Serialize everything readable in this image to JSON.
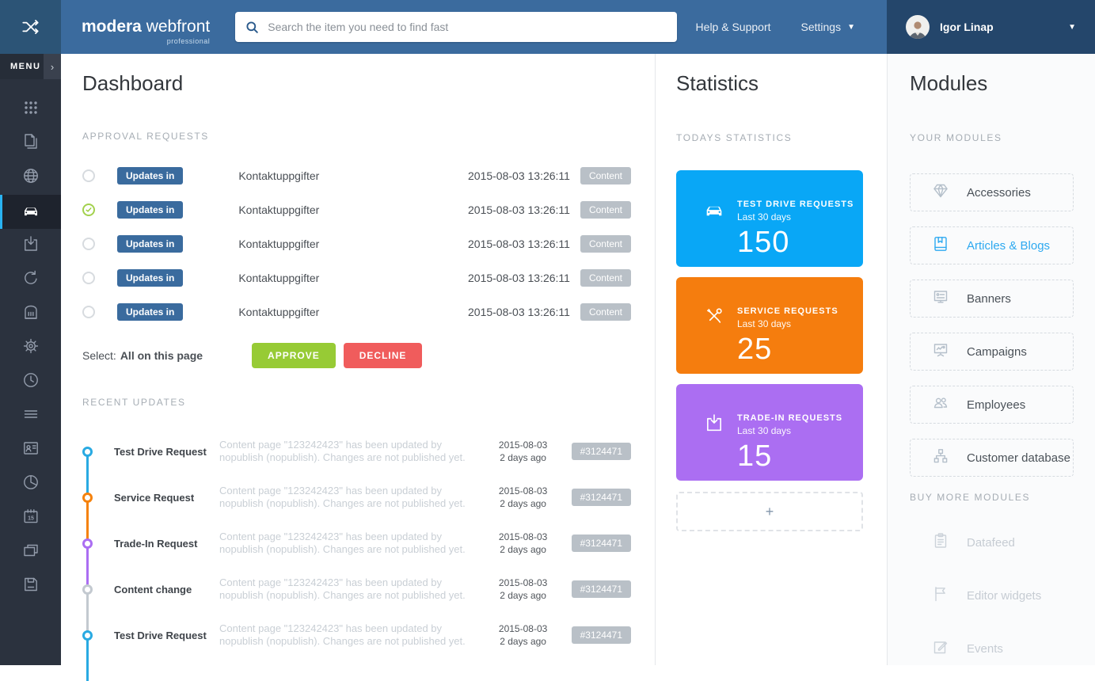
{
  "topbar": {
    "logo": {
      "brand_bold": "modera",
      "brand_light": "webfront",
      "tagline": "professional"
    },
    "search": {
      "placeholder": "Search the item you need to find fast",
      "value": ""
    },
    "help_label": "Help & Support",
    "settings_label": "Settings",
    "user": {
      "name": "Igor Linap"
    }
  },
  "sidebar": {
    "menu_label": "MENU",
    "items": [
      {
        "icon": "grid-icon",
        "active": false
      },
      {
        "icon": "pages-icon",
        "active": false
      },
      {
        "icon": "globe-icon",
        "active": false
      },
      {
        "icon": "car-icon",
        "active": true
      },
      {
        "icon": "download-icon",
        "active": false
      },
      {
        "icon": "refresh-icon",
        "active": false
      },
      {
        "icon": "building-icon",
        "active": false
      },
      {
        "icon": "gear-icon",
        "active": false
      },
      {
        "icon": "clock-icon",
        "active": false
      },
      {
        "icon": "list-icon",
        "active": false
      },
      {
        "icon": "id-card-icon",
        "active": false
      },
      {
        "icon": "pie-chart-icon",
        "active": false
      },
      {
        "icon": "calendar-icon",
        "active": false
      },
      {
        "icon": "windows-icon",
        "active": false
      },
      {
        "icon": "floppy-icon",
        "active": false
      }
    ]
  },
  "dashboard": {
    "title": "Dashboard",
    "approval": {
      "section_label": "APPROVAL REQUESTS",
      "rows": [
        {
          "checked": false,
          "badge": "Updates in",
          "name": "Kontaktuppgifter",
          "timestamp": "2015-08-03 13:26:11",
          "tag": "Content"
        },
        {
          "checked": true,
          "badge": "Updates in",
          "name": "Kontaktuppgifter",
          "timestamp": "2015-08-03 13:26:11",
          "tag": "Content"
        },
        {
          "checked": false,
          "badge": "Updates in",
          "name": "Kontaktuppgifter",
          "timestamp": "2015-08-03 13:26:11",
          "tag": "Content"
        },
        {
          "checked": false,
          "badge": "Updates in",
          "name": "Kontaktuppgifter",
          "timestamp": "2015-08-03 13:26:11",
          "tag": "Content"
        },
        {
          "checked": false,
          "badge": "Updates in",
          "name": "Kontaktuppgifter",
          "timestamp": "2015-08-03 13:26:11",
          "tag": "Content"
        }
      ],
      "select_label": "Select:",
      "select_value": "All on this page",
      "approve_label": "APPROVE",
      "decline_label": "DECLINE"
    },
    "recent": {
      "section_label": "RECENT UPDATES",
      "items": [
        {
          "title": "Test Drive Request",
          "desc": "Content page \"123242423\" has been updated by nopublish (nopublish). Changes are not published yet.",
          "date": "2015-08-03",
          "ago": "2 days ago",
          "badge": "#3124471",
          "color": "#29aae2"
        },
        {
          "title": "Service Request",
          "desc": "Content page \"123242423\" has been updated by nopublish (nopublish). Changes are not published yet.",
          "date": "2015-08-03",
          "ago": "2 days ago",
          "badge": "#3124471",
          "color": "#f5820d"
        },
        {
          "title": "Trade-In Request",
          "desc": "Content page \"123242423\" has been updated by nopublish (nopublish). Changes are not published yet.",
          "date": "2015-08-03",
          "ago": "2 days ago",
          "badge": "#3124471",
          "color": "#ab6ef2"
        },
        {
          "title": "Content change",
          "desc": "Content page \"123242423\" has been updated by nopublish (nopublish). Changes are not published yet.",
          "date": "2015-08-03",
          "ago": "2 days ago",
          "badge": "#3124471",
          "color": "#c3c9d0"
        },
        {
          "title": "Test Drive Request",
          "desc": "Content page \"123242423\" has been updated by nopublish (nopublish). Changes are not published yet.",
          "date": "2015-08-03",
          "ago": "2 days ago",
          "badge": "#3124471",
          "color": "#29aae2"
        }
      ]
    }
  },
  "statistics": {
    "title": "Statistics",
    "section_label": "TODAYS STATISTICS",
    "cards": [
      {
        "icon": "car-icon",
        "title": "TEST DRIVE REQUESTS",
        "sub": "Last 30 days",
        "value": "150",
        "color": "#09a7f6"
      },
      {
        "icon": "tools-icon",
        "title": "SERVICE REQUESTS",
        "sub": "Last 30 days",
        "value": "25",
        "color": "#f57d0e"
      },
      {
        "icon": "trade-in-icon",
        "title": "TRADE-IN REQUESTS",
        "sub": "Last 30 days",
        "value": "15",
        "color": "#ab6ef2"
      }
    ],
    "add_label": "+"
  },
  "modules": {
    "title": "Modules",
    "your_label": "YOUR MODULES",
    "items": [
      {
        "icon": "diamond-icon",
        "label": "Accessories",
        "active": false
      },
      {
        "icon": "book-icon",
        "label": "Articles & Blogs",
        "active": true
      },
      {
        "icon": "banner-icon",
        "label": "Banners",
        "active": false
      },
      {
        "icon": "campaign-icon",
        "label": "Campaigns",
        "active": false
      },
      {
        "icon": "people-icon",
        "label": "Employees",
        "active": false
      },
      {
        "icon": "org-chart-icon",
        "label": "Customer database",
        "active": false
      }
    ],
    "buy_label": "BUY MORE MODULES",
    "buy_items": [
      {
        "icon": "clipboard-icon",
        "label": "Datafeed"
      },
      {
        "icon": "flag-icon",
        "label": "Editor widgets"
      },
      {
        "icon": "edit-icon",
        "label": "Events"
      }
    ]
  },
  "colors": {
    "topbar": "#3b6b9e",
    "topbar_corner": "#2c5476",
    "topbar_user": "#24466b",
    "sidebar": "#2b323e",
    "sidebar_accent": "#29b3f2",
    "approve": "#97cb35",
    "decline": "#f05c5c",
    "badge_blue": "#3a6b9e",
    "badge_gray": "#b9c0c7",
    "stat_blue": "#09a7f6",
    "stat_orange": "#f57d0e",
    "stat_purple": "#ab6ef2",
    "module_active": "#2da9f0"
  }
}
